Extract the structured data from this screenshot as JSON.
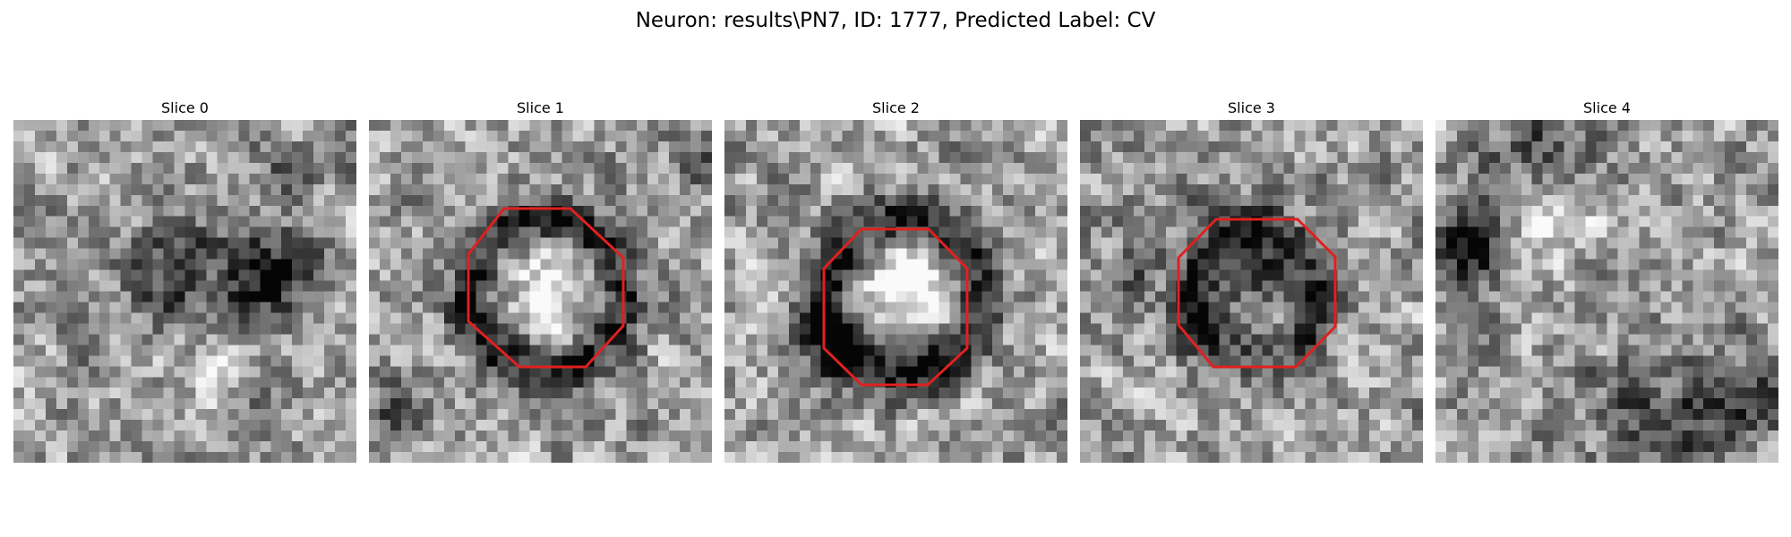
{
  "figure": {
    "title": "Neuron: results\\PN7, ID: 1777, Predicted Label: CV"
  },
  "panels": [
    {
      "label": "Slice 0",
      "octagon": false,
      "grid": 32,
      "seed": 11,
      "dark_spots": [
        [
          23,
          14,
          3,
          0.55
        ],
        [
          14,
          14,
          3,
          0.35
        ],
        [
          21,
          27,
          2,
          0.35
        ],
        [
          25,
          5,
          2,
          0.3
        ]
      ],
      "light_spots": [
        [
          19,
          24,
          2,
          0.35
        ]
      ]
    },
    {
      "label": "Slice 1",
      "octagon": true,
      "grid": 32,
      "seed": 23,
      "ring": [
        16,
        16,
        7,
        1.6,
        0.5
      ],
      "dark_spots": [
        [
          2,
          26,
          2,
          0.4
        ],
        [
          31,
          3,
          2,
          0.3
        ]
      ],
      "light_spots": [
        [
          16,
          15,
          3,
          0.3
        ]
      ]
    },
    {
      "label": "Slice 2",
      "octagon": true,
      "grid": 32,
      "seed": 37,
      "ring": [
        16,
        16,
        7,
        1.8,
        0.6
      ],
      "dark_spots": [
        [
          10,
          21,
          2,
          0.3
        ]
      ],
      "light_spots": [
        [
          17,
          15,
          4,
          0.4
        ]
      ]
    },
    {
      "label": "Slice 3",
      "octagon": true,
      "grid": 32,
      "seed": 51,
      "ring": [
        16,
        16,
        6,
        1.4,
        0.3
      ],
      "dark_spots": [
        [
          15,
          12,
          4,
          0.35
        ],
        [
          4,
          14,
          2,
          0.3
        ],
        [
          10,
          19,
          2,
          0.3
        ]
      ],
      "light_spots": []
    },
    {
      "label": "Slice 4",
      "octagon": false,
      "grid": 32,
      "seed": 67,
      "dark_spots": [
        [
          3,
          11,
          3,
          0.6
        ],
        [
          9,
          2,
          3,
          0.4
        ],
        [
          20,
          28,
          4,
          0.4
        ],
        [
          28,
          26,
          3,
          0.35
        ]
      ],
      "light_spots": [
        [
          10,
          9,
          3,
          0.3
        ]
      ]
    }
  ],
  "colors": {
    "circle": "#e02020",
    "background": "#ffffff"
  }
}
